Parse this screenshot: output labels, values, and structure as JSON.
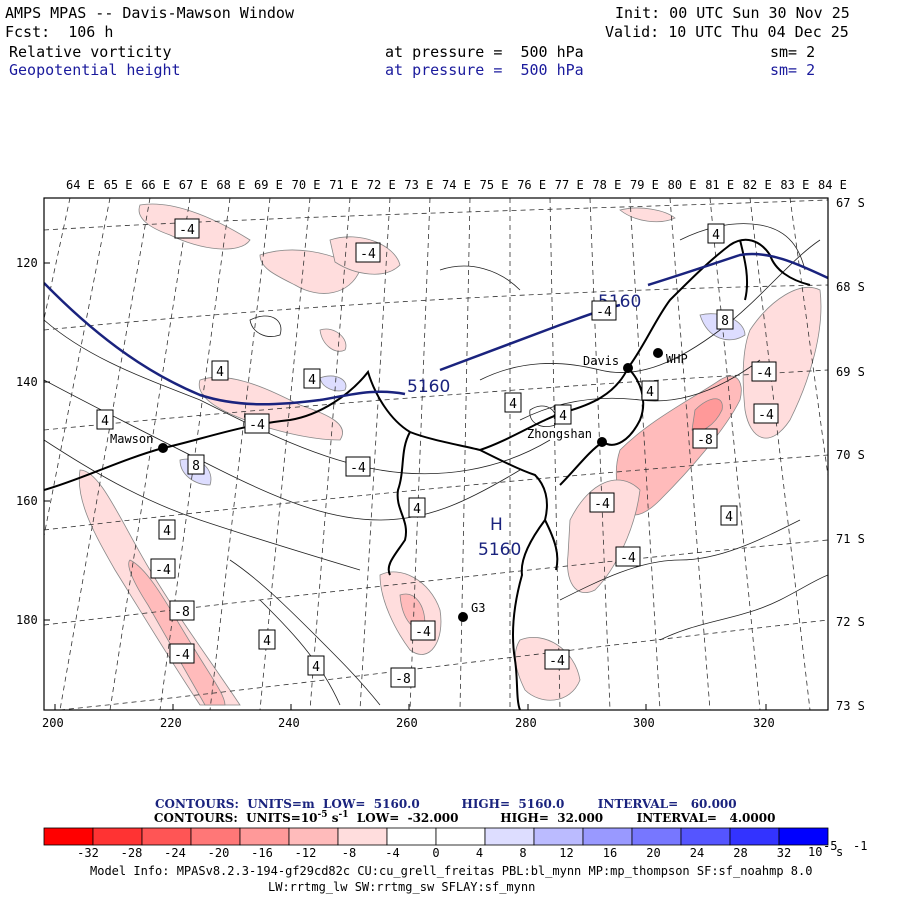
{
  "header": {
    "title": "AMPS MPAS -- Davis-Mawson Window",
    "init": "Init: 00 UTC Sun 30 Nov 25",
    "forecast": "Fcst:  106 h",
    "valid": "Valid: 10 UTC Thu 04 Dec 25",
    "field1": {
      "name": "Relative vorticity",
      "pressure": "at pressure =  500 hPa",
      "sm": "sm= 2"
    },
    "field2": {
      "name": "Geopotential height",
      "pressure": "at pressure =  500 hPa",
      "sm": "sm= 2"
    }
  },
  "map": {
    "lon_labels": [
      "64 E",
      "65 E",
      "66 E",
      "67 E",
      "68 E",
      "69 E",
      "70 E",
      "71 E",
      "72 E",
      "73 E",
      "74 E",
      "75 E",
      "76 E",
      "77 E",
      "78 E",
      "79 E",
      "80 E",
      "81 E",
      "82 E",
      "83 E",
      "84 E"
    ],
    "lat_labels": [
      "67 S",
      "68 S",
      "69 S",
      "70 S",
      "71 S",
      "72 S",
      "73 S"
    ],
    "x_ticks": [
      "200",
      "220",
      "240",
      "260",
      "280",
      "300",
      "320"
    ],
    "y_ticks": [
      "120",
      "140",
      "160",
      "180"
    ],
    "stations": [
      {
        "name": "Mawson"
      },
      {
        "name": "Davis"
      },
      {
        "name": "WHP"
      },
      {
        "name": "Zhongshan"
      },
      {
        "name": "G3"
      }
    ],
    "height_labels": [
      "5160",
      "5160",
      "5160"
    ],
    "height_center": "H",
    "vort_labels": [
      "-4",
      "-4",
      "-4",
      "-4",
      "-4",
      "-4",
      "-4",
      "-4",
      "-4",
      "-4",
      "-4",
      "-4",
      "-4",
      "4",
      "4",
      "4",
      "4",
      "4",
      "4",
      "4",
      "4",
      "4",
      "4",
      "4",
      "4",
      "-8",
      "-8",
      "-8",
      "8",
      "8"
    ]
  },
  "legend": {
    "line1": "CONTOURS:  UNITS=m  LOW=  5160.0          HIGH=  5160.0        INTERVAL=   60.000",
    "line2_pre": "CONTOURS:  UNITS=10",
    "line2_exp": "-5",
    "line2_s": " s",
    "line2_sexp": "-1",
    "line2_post": "  LOW=  -32.000          HIGH=  32.000        INTERVAL=   4.0000",
    "scale_labels": [
      "-32",
      "-28",
      "-24",
      "-20",
      "-16",
      "-12",
      "-8",
      "-4",
      "0",
      "4",
      "8",
      "12",
      "16",
      "20",
      "24",
      "28",
      "32"
    ],
    "scale_colors": [
      "#ff0000",
      "#ff3333",
      "#ff5555",
      "#ff7777",
      "#ff9999",
      "#ffbbbb",
      "#ffdddd",
      "#ffffff",
      "#ffffff",
      "#ddddff",
      "#bbbbff",
      "#9999ff",
      "#7777ff",
      "#5555ff",
      "#3333ff",
      "#0000ff"
    ],
    "units_base": "10",
    "units_exp": "-5",
    "units_s": " s",
    "units_sexp": "-1"
  },
  "footer": {
    "model_info": "Model Info: MPASv8.2.3-194-gf29cd82c CU:cu_grell_freitas PBL:bl_mynn MP:mp_thompson SF:sf_noahmp 8.0",
    "physics": "LW:rrtmg_lw SW:rrtmg_sw SFLAY:sf_mynn"
  }
}
